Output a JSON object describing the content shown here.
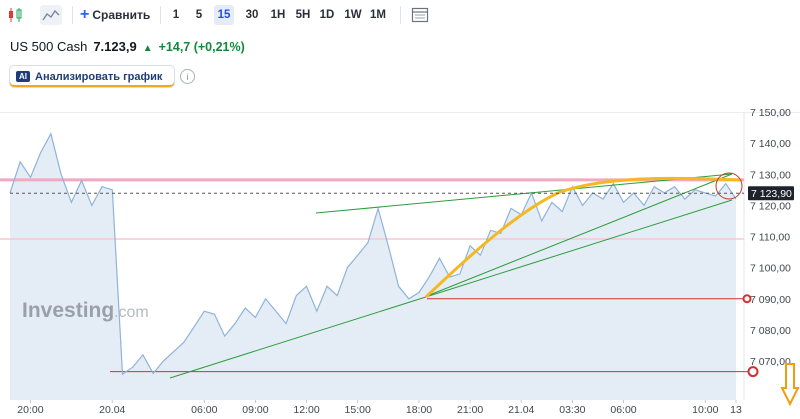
{
  "toolbar": {
    "compare_label": "Сравнить",
    "timeframes": [
      "1",
      "5",
      "15",
      "30",
      "1H",
      "5H",
      "1D",
      "1W",
      "1M"
    ],
    "active_timeframe": "15"
  },
  "quote": {
    "name": "US 500 Cash",
    "price": "7.123,9",
    "change": "+14,7 (+0,21%)"
  },
  "analyze": {
    "badge": "AI",
    "label": "Анализировать график"
  },
  "watermark": {
    "brand": "Investing",
    "suffix": ".com"
  },
  "chart_data": {
    "type": "area",
    "ylim": [
      7060,
      7157
    ],
    "y_ticks": [
      {
        "value": 7150,
        "label": "7 150,00"
      },
      {
        "value": 7140,
        "label": "7 140,00"
      },
      {
        "value": 7130,
        "label": "7 130,00"
      },
      {
        "value": 7120,
        "label": "7 120,00"
      },
      {
        "value": 7110,
        "label": "7 110,00"
      },
      {
        "value": 7100,
        "label": "7 100,00"
      },
      {
        "value": 7090,
        "label": "7 090,00"
      },
      {
        "value": 7080,
        "label": "7 080,00"
      },
      {
        "value": 7070,
        "label": "7 070,00"
      }
    ],
    "x_ticks": [
      "20:00",
      "20.04",
      "06:00",
      "09:00",
      "12:00",
      "15:00",
      "18:00",
      "21:00",
      "21.04",
      "03:30",
      "06:00",
      "10:00",
      "13"
    ],
    "x_tick_index": [
      2,
      10,
      19,
      24,
      29,
      34,
      40,
      45,
      50,
      55,
      60,
      68,
      71
    ],
    "current_price": 7123.9,
    "current_price_label": "7 123,90",
    "horizontal_lines": [
      {
        "value": 7128.2,
        "color": "#f4a7c0"
      },
      {
        "value": 7109.2,
        "color": "#f7c8d4"
      },
      {
        "value": 7090.0,
        "color": "#d32f2f"
      },
      {
        "value": 7066.6,
        "color": "#d32f2f"
      }
    ],
    "colors": {
      "line": "#8fb3d9",
      "fill": "#e4edf6",
      "trend": "#2e9c3c",
      "curve": "#f4b822",
      "level": "#d32f2f"
    },
    "values": [
      7124,
      7134,
      7129,
      7137,
      7143,
      7130,
      7121,
      7128,
      7120,
      7126,
      7125,
      7065.8,
      7068,
      7072,
      7066,
      7070,
      7073,
      7076,
      7081,
      7086,
      7085,
      7078,
      7082,
      7087,
      7084,
      7090,
      7086,
      7082,
      7091,
      7094,
      7086,
      7094,
      7091,
      7100,
      7104,
      7108,
      7119,
      7107,
      7094,
      7090,
      7092,
      7097,
      7103,
      7097,
      7098,
      7107,
      7104,
      7112,
      7111,
      7119,
      7117,
      7124,
      7115,
      7121,
      7118,
      7126,
      7120,
      7124,
      7122,
      7127,
      7121,
      7124,
      7120,
      7126,
      7124,
      7126,
      7122,
      7125,
      7124,
      7123,
      7127,
      7122
    ],
    "points": 72
  }
}
